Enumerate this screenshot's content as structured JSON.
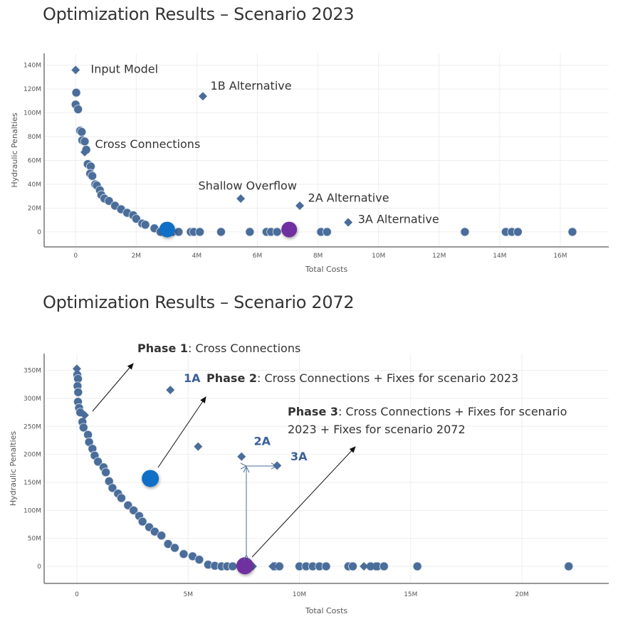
{
  "titles": {
    "top": "Optimization Results – Scenario 2023",
    "bottom": "Optimization Results – Scenario 2072"
  },
  "phases": [
    {
      "label": "Phase 1",
      "text": ": Cross Connections"
    },
    {
      "label": "Phase 2",
      "text": ": Cross Connections + Fixes for scenario 2023"
    },
    {
      "label": "Phase 3",
      "text": ": Cross Connections + Fixes for scenario",
      "text2": "2023 + Fixes for scenario 2072"
    }
  ],
  "colors": {
    "point": "#4a6d9a",
    "highlight_blue": "#0f6fc6",
    "highlight_purple": "#7030a0",
    "label_blue": "#3a5f9a"
  },
  "chart_data": [
    {
      "type": "scatter",
      "title": "Optimization Results – Scenario 2023",
      "xlabel": "Total Costs",
      "ylabel": "Hydraulic Penalties",
      "xlim": [
        -1.04,
        17.6
      ],
      "ylim": [
        -12.6,
        150
      ],
      "xticks": [
        0,
        2,
        4,
        6,
        8,
        10,
        12,
        14,
        16
      ],
      "xticklabels": [
        "0",
        "2M",
        "4M",
        "6M",
        "8M",
        "10M",
        "12M",
        "14M",
        "16M"
      ],
      "yticks": [
        0,
        20,
        40,
        60,
        80,
        100,
        120,
        140
      ],
      "yticklabels": [
        "0",
        "20M",
        "40M",
        "60M",
        "80M",
        "100M",
        "120M",
        "140M"
      ],
      "grid": true,
      "units": "millions",
      "circles": [
        [
          0.02,
          117
        ],
        [
          0.0,
          107
        ],
        [
          0.08,
          103
        ],
        [
          0.15,
          85
        ],
        [
          0.2,
          84
        ],
        [
          0.22,
          77
        ],
        [
          0.3,
          76
        ],
        [
          0.35,
          69
        ],
        [
          0.4,
          57
        ],
        [
          0.5,
          55
        ],
        [
          0.48,
          49
        ],
        [
          0.55,
          47
        ],
        [
          0.65,
          40
        ],
        [
          0.7,
          39
        ],
        [
          0.8,
          35
        ],
        [
          0.85,
          31
        ],
        [
          0.95,
          28
        ],
        [
          1.1,
          26
        ],
        [
          1.3,
          22
        ],
        [
          1.5,
          19
        ],
        [
          1.7,
          16
        ],
        [
          1.9,
          14
        ],
        [
          2.0,
          11
        ],
        [
          2.2,
          7
        ],
        [
          2.3,
          6
        ],
        [
          2.6,
          3
        ],
        [
          2.8,
          0
        ],
        [
          3.2,
          0
        ],
        [
          3.4,
          0
        ],
        [
          3.8,
          0
        ],
        [
          3.9,
          0
        ],
        [
          4.1,
          0
        ],
        [
          4.8,
          0
        ],
        [
          5.75,
          0
        ],
        [
          6.3,
          0
        ],
        [
          6.45,
          0
        ],
        [
          6.65,
          0
        ],
        [
          8.1,
          0
        ],
        [
          8.3,
          0
        ],
        [
          12.85,
          0
        ],
        [
          14.2,
          0
        ],
        [
          14.4,
          0
        ],
        [
          14.6,
          0
        ],
        [
          16.4,
          0
        ]
      ],
      "diamonds": [
        [
          0,
          136
        ],
        [
          4.2,
          114
        ],
        [
          0.3,
          67
        ],
        [
          5.45,
          28
        ],
        [
          7.4,
          22
        ],
        [
          9.0,
          8
        ]
      ],
      "highlights": [
        {
          "x": 3.02,
          "y": 2,
          "color": "#0f6fc6"
        },
        {
          "x": 7.05,
          "y": 2,
          "color": "#7030a0"
        }
      ],
      "annotations": [
        {
          "text": "Input Model",
          "x": 0.5,
          "y": 137
        },
        {
          "text": "1B Alternative",
          "x": 4.45,
          "y": 123
        },
        {
          "text": "Cross Connections",
          "x": 0.64,
          "y": 74
        },
        {
          "text": "Shallow Overflow",
          "x": 4.05,
          "y": 39
        },
        {
          "text": "2A Alternative",
          "x": 7.67,
          "y": 29
        },
        {
          "text": "3A Alternative",
          "x": 9.32,
          "y": 11
        }
      ]
    },
    {
      "type": "scatter",
      "title": "Optimization Results – Scenario 2072",
      "xlabel": "Total Costs",
      "ylabel": "Hydraulic Penalties",
      "xlim": [
        -1.47,
        23.9
      ],
      "ylim": [
        -30.5,
        380
      ],
      "xticks": [
        0,
        5,
        10,
        15,
        20
      ],
      "xticklabels": [
        "0",
        "5M",
        "10M",
        "15M",
        "20M"
      ],
      "yticks": [
        0,
        50,
        100,
        150,
        200,
        250,
        300,
        350
      ],
      "yticklabels": [
        "0",
        "50M",
        "100M",
        "150M",
        "200M",
        "250M",
        "300M",
        "350M"
      ],
      "grid": true,
      "units": "millions",
      "circles": [
        [
          0.02,
          342
        ],
        [
          0.05,
          335
        ],
        [
          0.03,
          322
        ],
        [
          0.06,
          311
        ],
        [
          0.05,
          294
        ],
        [
          0.1,
          283
        ],
        [
          0.15,
          275
        ],
        [
          0.25,
          258
        ],
        [
          0.3,
          248
        ],
        [
          0.5,
          235
        ],
        [
          0.55,
          222
        ],
        [
          0.7,
          210
        ],
        [
          0.8,
          198
        ],
        [
          0.95,
          187
        ],
        [
          1.2,
          177
        ],
        [
          1.3,
          168
        ],
        [
          1.45,
          152
        ],
        [
          1.6,
          140
        ],
        [
          1.85,
          130
        ],
        [
          2.0,
          122
        ],
        [
          2.3,
          109
        ],
        [
          2.55,
          100
        ],
        [
          2.8,
          90
        ],
        [
          2.95,
          80
        ],
        [
          3.25,
          70
        ],
        [
          3.5,
          62
        ],
        [
          3.8,
          55
        ],
        [
          4.1,
          40
        ],
        [
          4.4,
          33
        ],
        [
          4.8,
          22
        ],
        [
          5.2,
          18
        ],
        [
          5.5,
          12
        ],
        [
          5.9,
          3
        ],
        [
          6.2,
          1
        ],
        [
          6.5,
          0
        ],
        [
          6.75,
          0
        ],
        [
          7.0,
          0
        ],
        [
          8.9,
          0
        ],
        [
          9.1,
          0
        ],
        [
          10.0,
          0
        ],
        [
          10.3,
          0
        ],
        [
          10.6,
          0
        ],
        [
          10.9,
          0
        ],
        [
          11.2,
          0
        ],
        [
          12.2,
          0
        ],
        [
          12.4,
          0
        ],
        [
          13.2,
          0
        ],
        [
          13.5,
          0
        ],
        [
          13.8,
          0
        ],
        [
          15.3,
          0
        ],
        [
          22.1,
          0
        ]
      ],
      "diamonds": [
        [
          0,
          353
        ],
        [
          0.35,
          270
        ],
        [
          4.2,
          315
        ],
        [
          5.45,
          214
        ],
        [
          7.4,
          196
        ],
        [
          9.0,
          180
        ],
        [
          7.9,
          0
        ],
        [
          8.8,
          0
        ],
        [
          12.9,
          0
        ],
        [
          13.4,
          0
        ]
      ],
      "highlights": [
        {
          "x": 3.3,
          "y": 157,
          "color": "#0f6fc6"
        },
        {
          "x": 7.55,
          "y": 1,
          "color": "#7030a0"
        }
      ],
      "annotations": [
        {
          "text": "1A",
          "x": 4.8,
          "y": 337
        },
        {
          "text": "2A",
          "x": 7.95,
          "y": 224
        },
        {
          "text": "3A",
          "x": 9.6,
          "y": 197
        }
      ]
    }
  ]
}
